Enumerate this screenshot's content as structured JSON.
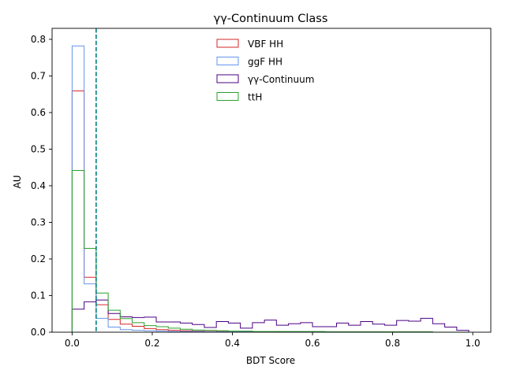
{
  "chart_data": {
    "type": "histogram",
    "title": "γγ-Continuum Class",
    "xlabel": "BDT Score",
    "ylabel": "AU",
    "xlim": [
      -0.05,
      1.045
    ],
    "ylim": [
      0,
      0.83
    ],
    "xticks": [
      "0.0",
      "0.2",
      "0.4",
      "0.6",
      "0.8",
      "1.0"
    ],
    "xtick_values": [
      0.0,
      0.2,
      0.4,
      0.6,
      0.8,
      1.0
    ],
    "yticks": [
      "0.0",
      "0.1",
      "0.2",
      "0.3",
      "0.4",
      "0.5",
      "0.6",
      "0.7",
      "0.8"
    ],
    "ytick_values": [
      0.0,
      0.1,
      0.2,
      0.3,
      0.4,
      0.5,
      0.6,
      0.7,
      0.8
    ],
    "grid": false,
    "legend_position": "top-center",
    "bin_edges": [
      0.0,
      0.03,
      0.06,
      0.09,
      0.12,
      0.15,
      0.18,
      0.21,
      0.24,
      0.27,
      0.3,
      0.33,
      0.36,
      0.39,
      0.42,
      0.45,
      0.48,
      0.51,
      0.54,
      0.57,
      0.6,
      0.63,
      0.66,
      0.69,
      0.72,
      0.75,
      0.78,
      0.81,
      0.84,
      0.87,
      0.9,
      0.93,
      0.96,
      0.99
    ],
    "series": [
      {
        "name": "VBF HH",
        "color": "#d62728",
        "values": [
          0.659,
          0.15,
          0.075,
          0.035,
          0.022,
          0.016,
          0.01,
          0.007,
          0.005,
          0.004,
          0.003,
          0.002,
          0.002,
          0.002,
          0.001,
          0.001,
          0.001,
          0.001,
          0.001,
          0.001,
          0.001,
          0.0,
          0.0,
          0.0,
          0.0,
          0.0,
          0.0,
          0.0,
          0.0,
          0.0,
          0.0,
          0.0,
          0.0
        ]
      },
      {
        "name": "ggF HH",
        "color": "#6495ed",
        "values": [
          0.782,
          0.132,
          0.038,
          0.014,
          0.007,
          0.005,
          0.004,
          0.003,
          0.002,
          0.002,
          0.002,
          0.001,
          0.001,
          0.001,
          0.001,
          0.001,
          0.001,
          0.0,
          0.0,
          0.0,
          0.0,
          0.0,
          0.0,
          0.0,
          0.0,
          0.0,
          0.0,
          0.0,
          0.0,
          0.0,
          0.0,
          0.0,
          0.0
        ]
      },
      {
        "name": "γγ-Continuum",
        "color": "#4b0082",
        "values": [
          0.063,
          0.083,
          0.088,
          0.051,
          0.042,
          0.04,
          0.041,
          0.028,
          0.028,
          0.025,
          0.021,
          0.013,
          0.029,
          0.025,
          0.011,
          0.026,
          0.033,
          0.019,
          0.023,
          0.026,
          0.015,
          0.015,
          0.025,
          0.019,
          0.029,
          0.022,
          0.019,
          0.032,
          0.03,
          0.038,
          0.023,
          0.014,
          0.005
        ]
      },
      {
        "name": "ttH",
        "color": "#2ca02c",
        "values": [
          0.442,
          0.229,
          0.107,
          0.06,
          0.037,
          0.026,
          0.018,
          0.015,
          0.011,
          0.008,
          0.006,
          0.005,
          0.004,
          0.003,
          0.003,
          0.002,
          0.002,
          0.002,
          0.002,
          0.002,
          0.002,
          0.001,
          0.001,
          0.001,
          0.001,
          0.001,
          0.001,
          0.001,
          0.001,
          0.001,
          0.0,
          0.0,
          0.0
        ]
      }
    ],
    "vline": {
      "x": 0.06,
      "color": "#008080",
      "style": "dashed"
    }
  }
}
